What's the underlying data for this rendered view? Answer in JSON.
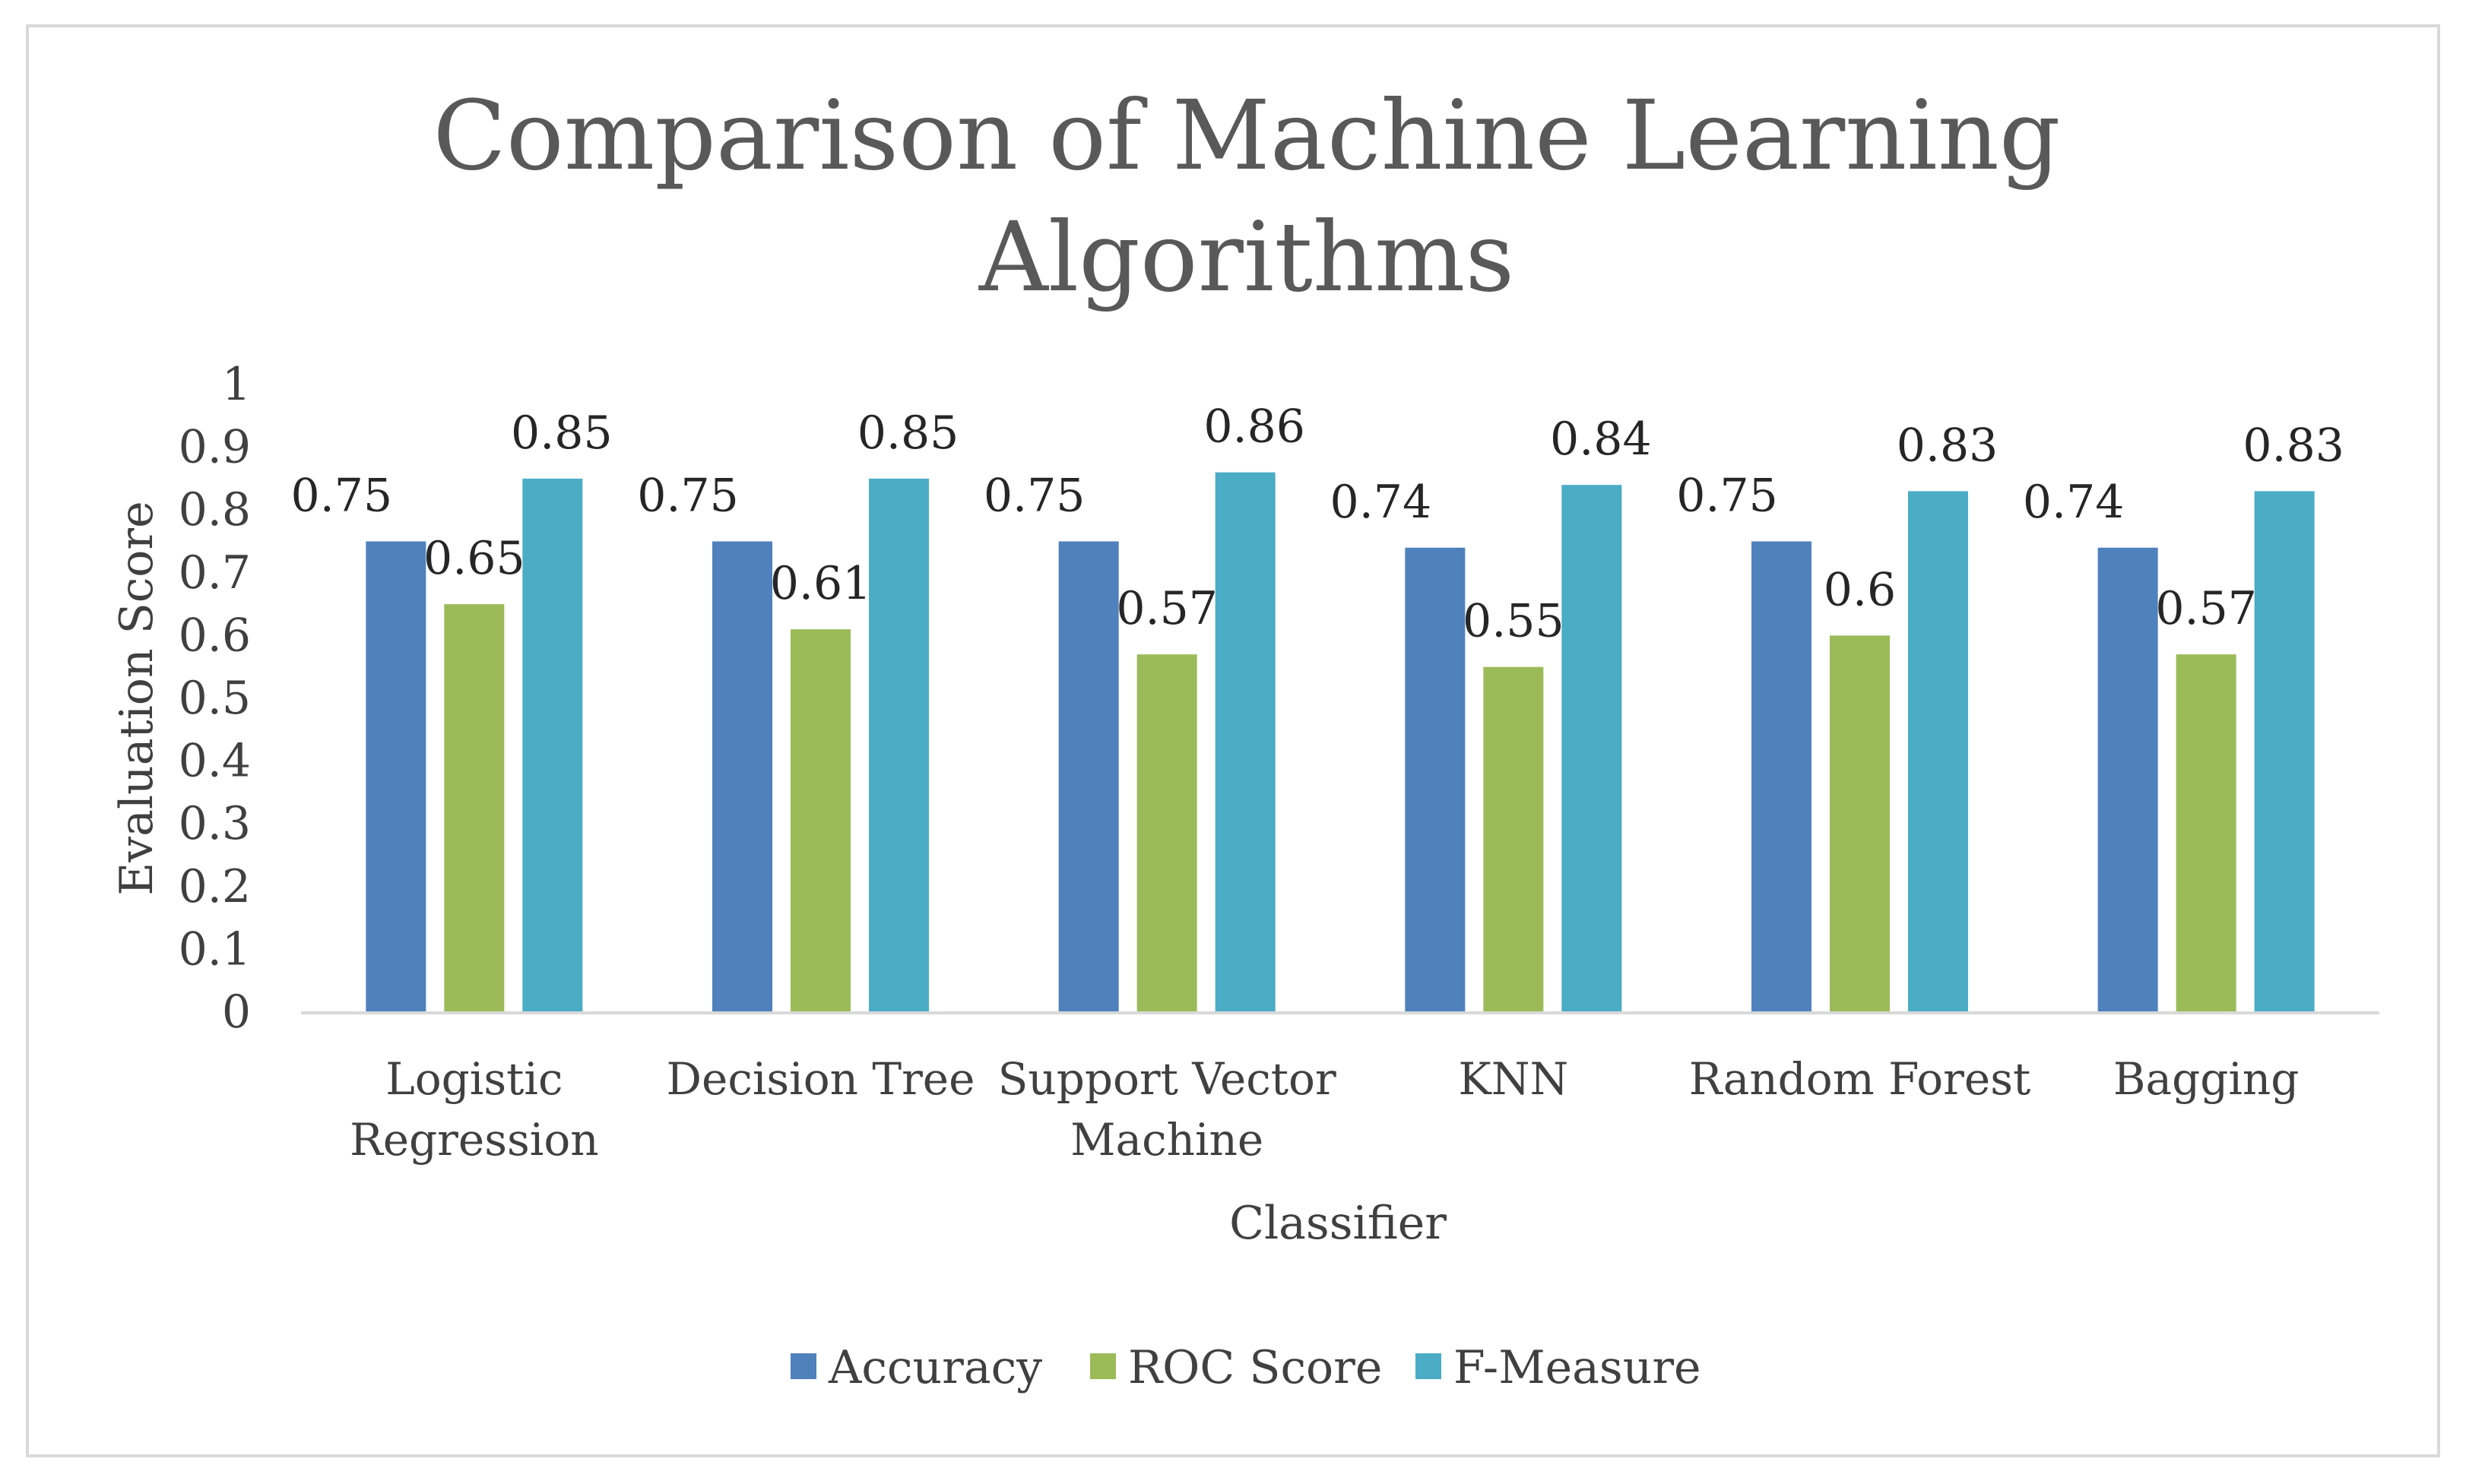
{
  "chart_data": {
    "type": "bar",
    "title": "Comparison of Machine Learning Algorithms",
    "title_lines": [
      "Comparison of Machine Learning",
      "Algorithms"
    ],
    "xlabel": "Classifier",
    "ylabel": "Evaluation Score",
    "ylim": [
      0,
      1
    ],
    "yticks": [
      "0",
      "0.1",
      "0.2",
      "0.3",
      "0.4",
      "0.5",
      "0.6",
      "0.7",
      "0.8",
      "0.9",
      "1"
    ],
    "categories": [
      "Logistic Regression",
      "Decision Tree",
      "Support Vector Machine",
      "KNN",
      "Random Forest",
      "Bagging"
    ],
    "category_lines": [
      [
        "Logistic",
        "Regression"
      ],
      [
        "Decision Tree"
      ],
      [
        "Support Vector",
        "Machine"
      ],
      [
        "KNN"
      ],
      [
        "Random Forest"
      ],
      [
        "Bagging"
      ]
    ],
    "series": [
      {
        "name": "Accuracy",
        "color": "#4f81bd",
        "values": [
          0.75,
          0.75,
          0.75,
          0.74,
          0.75,
          0.74
        ],
        "labels": [
          "0.75",
          "0.75",
          "0.75",
          "0.74",
          "0.75",
          "0.74"
        ]
      },
      {
        "name": "ROC Score",
        "color": "#9bbb59",
        "values": [
          0.65,
          0.61,
          0.57,
          0.55,
          0.6,
          0.57
        ],
        "labels": [
          "0.65",
          "0.61",
          "0.57",
          "0.55",
          "0.6",
          "0.57"
        ]
      },
      {
        "name": "F-Measure",
        "color": "#4bacc6",
        "values": [
          0.85,
          0.85,
          0.86,
          0.84,
          0.83,
          0.83
        ],
        "labels": [
          "0.85",
          "0.85",
          "0.86",
          "0.84",
          "0.83",
          "0.83"
        ]
      }
    ],
    "grid": false,
    "legend_position": "bottom"
  }
}
